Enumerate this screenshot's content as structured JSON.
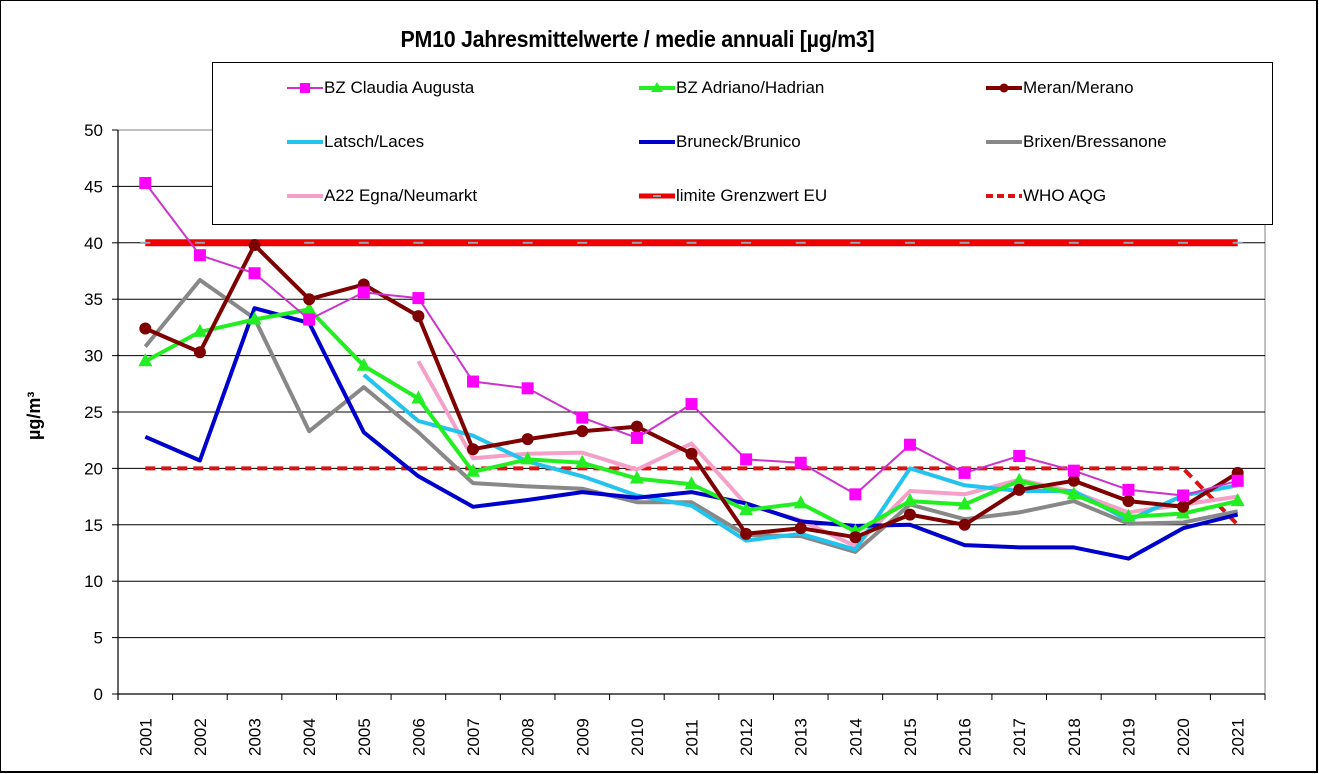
{
  "chart_data": {
    "type": "line",
    "title": "PM10 Jahresmittelwerte / medie annuali [µg/m3]",
    "xlabel": "",
    "ylabel": "µg/m³",
    "ylim": [
      0,
      50
    ],
    "yticks": [
      0,
      5,
      10,
      15,
      20,
      25,
      30,
      35,
      40,
      45,
      50
    ],
    "grid": true,
    "legend_position": "top",
    "categories": [
      "2001",
      "2002",
      "2003",
      "2004",
      "2005",
      "2006",
      "2007",
      "2008",
      "2009",
      "2010",
      "2011",
      "2012",
      "2013",
      "2014",
      "2015",
      "2016",
      "2017",
      "2018",
      "2019",
      "2020",
      "2021"
    ],
    "series": [
      {
        "name": "BZ Claudia Augusta",
        "color": "#ff00ff",
        "line_color": "#cc33cc",
        "marker": "square",
        "width": 2,
        "values": [
          45.3,
          38.9,
          37.3,
          33.2,
          35.6,
          35.1,
          27.7,
          27.1,
          24.5,
          22.7,
          25.7,
          20.8,
          20.5,
          17.7,
          22.1,
          19.6,
          21.1,
          19.8,
          18.1,
          17.6,
          18.9
        ]
      },
      {
        "name": "BZ Adriano/Hadrian",
        "color": "#22ee22",
        "marker": "triangle",
        "width": 4,
        "values": [
          29.5,
          32.1,
          33.2,
          34.1,
          29.1,
          26.2,
          19.7,
          20.8,
          20.5,
          19.1,
          18.6,
          16.3,
          16.9,
          14.4,
          17.1,
          16.8,
          18.9,
          17.7,
          15.7,
          16.0,
          17.1
        ]
      },
      {
        "name": "Meran/Merano",
        "color": "#7f0000",
        "marker": "circle",
        "width": 4,
        "values": [
          32.4,
          30.3,
          39.8,
          35.0,
          36.3,
          33.5,
          21.7,
          22.6,
          23.3,
          23.7,
          21.3,
          14.2,
          14.7,
          13.9,
          15.9,
          15.0,
          18.1,
          18.9,
          17.1,
          16.6,
          19.6
        ]
      },
      {
        "name": "Latsch/Laces",
        "color": "#22c4ee",
        "marker": "none",
        "width": 4,
        "values": [
          null,
          null,
          null,
          null,
          28.3,
          24.2,
          22.9,
          20.6,
          19.3,
          17.6,
          16.7,
          13.6,
          14.2,
          12.8,
          20.0,
          18.5,
          18.0,
          18.0,
          15.4,
          17.6,
          18.5
        ]
      },
      {
        "name": "Bruneck/Brunico",
        "color": "#0000cc",
        "marker": "none",
        "width": 4,
        "values": [
          22.8,
          20.7,
          34.2,
          32.9,
          23.2,
          19.3,
          16.6,
          17.2,
          17.9,
          17.4,
          17.9,
          16.9,
          15.3,
          14.9,
          15.0,
          13.2,
          13.0,
          13.0,
          12.0,
          14.7,
          15.9
        ]
      },
      {
        "name": "Brixen/Bressanone",
        "color": "#888888",
        "marker": "none",
        "width": 4,
        "values": [
          30.8,
          36.7,
          33.3,
          23.3,
          27.2,
          23.2,
          18.7,
          18.4,
          18.2,
          17.0,
          17.0,
          14.1,
          14.0,
          12.6,
          16.8,
          15.5,
          16.1,
          17.1,
          15.1,
          15.2,
          16.2
        ]
      },
      {
        "name": "A22 Egna/Neumarkt",
        "color": "#f4a0c8",
        "marker": "none",
        "width": 4,
        "values": [
          null,
          null,
          null,
          null,
          null,
          29.5,
          20.9,
          21.3,
          21.4,
          19.9,
          22.2,
          16.8,
          15.4,
          13.1,
          18.0,
          17.7,
          19.0,
          17.9,
          16.1,
          16.8,
          17.5
        ]
      },
      {
        "name": "limite Grenzwert EU",
        "color": "#ee0000",
        "marker": "dash-gray",
        "width": 7,
        "values": [
          40,
          40,
          40,
          40,
          40,
          40,
          40,
          40,
          40,
          40,
          40,
          40,
          40,
          40,
          40,
          40,
          40,
          40,
          40,
          40,
          40
        ]
      },
      {
        "name": "WHO AQG",
        "color": "#dd1111",
        "marker": "none",
        "dashed": true,
        "width": 4,
        "values": [
          20,
          20,
          20,
          20,
          20,
          20,
          20,
          20,
          20,
          20,
          20,
          20,
          20,
          20,
          20,
          20,
          20,
          20,
          20,
          20,
          15
        ]
      }
    ]
  }
}
